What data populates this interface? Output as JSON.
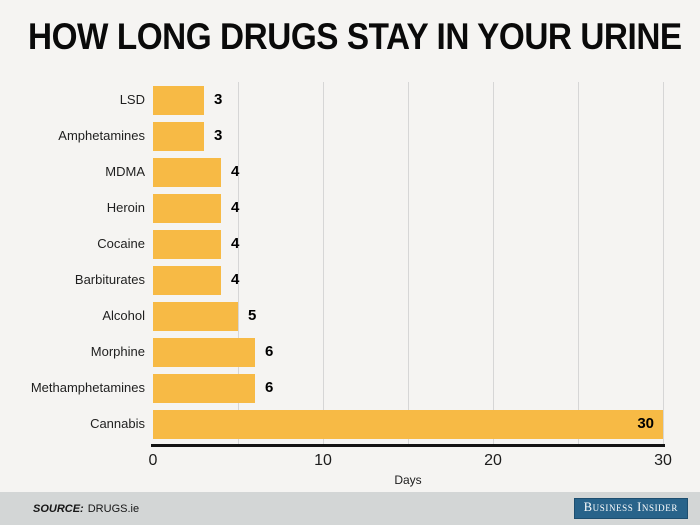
{
  "title": "HOW LONG DRUGS STAY IN YOUR URINE",
  "chart_data": {
    "type": "bar",
    "orientation": "horizontal",
    "categories": [
      "LSD",
      "Amphetamines",
      "MDMA",
      "Heroin",
      "Cocaine",
      "Barbiturates",
      "Alcohol",
      "Morphine",
      "Methamphetamines",
      "Cannabis"
    ],
    "values": [
      3,
      3,
      4,
      4,
      4,
      4,
      5,
      6,
      6,
      30
    ],
    "value_labels": [
      "3",
      "3",
      "4",
      "4",
      "4",
      "4",
      "5",
      "6",
      "6",
      "30"
    ],
    "xlabel": "Days",
    "xlim": [
      0,
      30
    ],
    "xticks": [
      0,
      10,
      20,
      30
    ],
    "gridline_interval": 5,
    "grid": "vertical-lines",
    "bar_color": "#f7ba45",
    "gridline_color": "#d6d6d6",
    "axis_color": "#131313",
    "legend": "none"
  },
  "footer": {
    "source_label": "SOURCE:",
    "source_value": "DRUGS.ie",
    "brand": "Business Insider",
    "brand_color": "#28638a"
  }
}
